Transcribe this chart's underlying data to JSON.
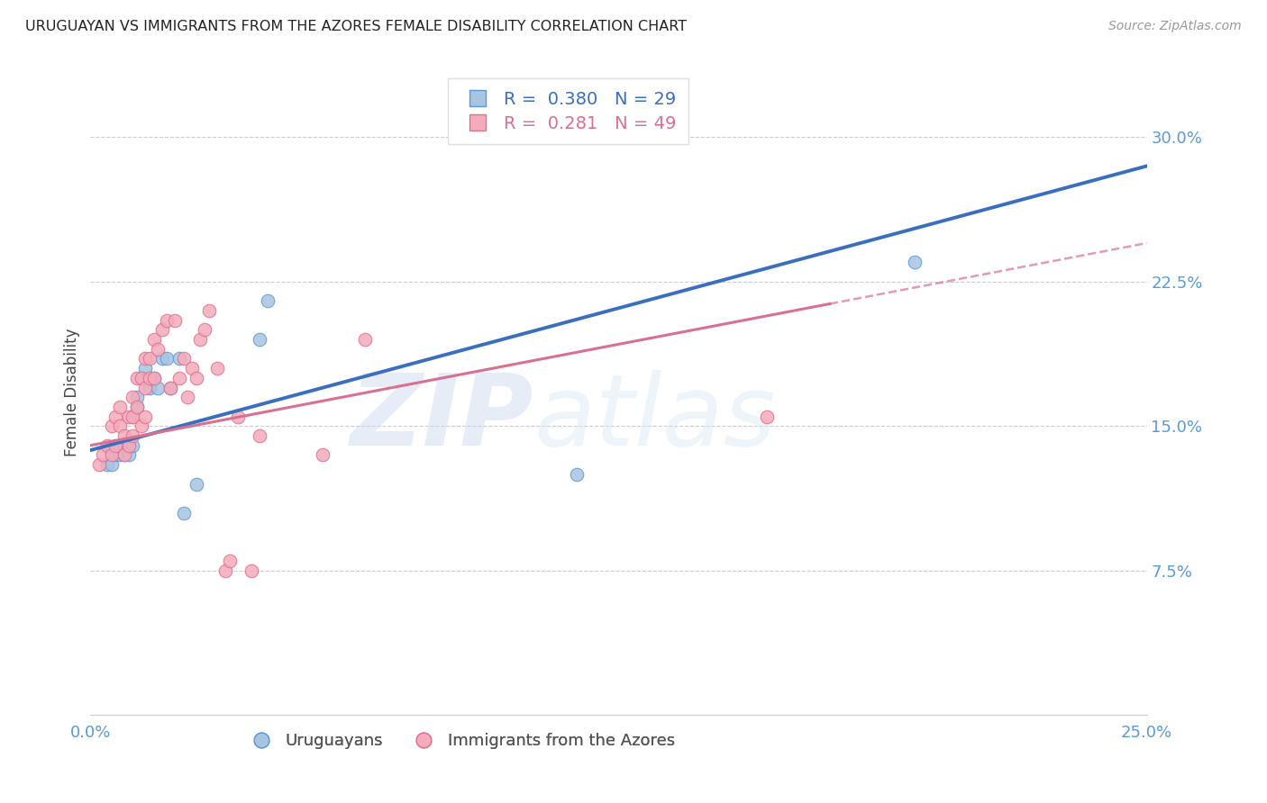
{
  "title": "URUGUAYAN VS IMMIGRANTS FROM THE AZORES FEMALE DISABILITY CORRELATION CHART",
  "source": "Source: ZipAtlas.com",
  "ylabel": "Female Disability",
  "xlim": [
    0.0,
    0.25
  ],
  "ylim": [
    0.0,
    0.335
  ],
  "yticks_right": [
    0.075,
    0.15,
    0.225,
    0.3
  ],
  "yticklabels_right": [
    "7.5%",
    "15.0%",
    "22.5%",
    "30.0%"
  ],
  "tick_color": "#5B9BD5",
  "blue_dot_color": "#A8C4E0",
  "blue_dot_edge": "#5B9BD5",
  "pink_dot_color": "#F4ABBA",
  "pink_dot_edge": "#E07090",
  "blue_line_color": "#3A6FBF",
  "pink_line_color": "#D97090",
  "legend_R_blue": "0.380",
  "legend_N_blue": "29",
  "legend_R_pink": "0.281",
  "legend_N_pink": "49",
  "legend_label_blue": "Uruguayans",
  "legend_label_pink": "Immigrants from the Azores",
  "watermark": "ZIPatlas",
  "blue_line_x0": 0.0,
  "blue_line_y0": 0.1375,
  "blue_line_x1": 0.25,
  "blue_line_y1": 0.285,
  "pink_line_x0": 0.0,
  "pink_line_y0": 0.14,
  "pink_line_x1": 0.25,
  "pink_line_y1": 0.245,
  "blue_scatter_x": [
    0.004,
    0.005,
    0.006,
    0.007,
    0.007,
    0.008,
    0.008,
    0.009,
    0.009,
    0.01,
    0.01,
    0.011,
    0.011,
    0.012,
    0.013,
    0.013,
    0.014,
    0.015,
    0.016,
    0.017,
    0.018,
    0.019,
    0.021,
    0.022,
    0.025,
    0.04,
    0.042,
    0.115,
    0.195
  ],
  "blue_scatter_y": [
    0.13,
    0.13,
    0.135,
    0.135,
    0.14,
    0.135,
    0.14,
    0.135,
    0.14,
    0.14,
    0.155,
    0.16,
    0.165,
    0.175,
    0.175,
    0.18,
    0.17,
    0.175,
    0.17,
    0.185,
    0.185,
    0.17,
    0.185,
    0.105,
    0.12,
    0.195,
    0.215,
    0.125,
    0.235
  ],
  "pink_scatter_x": [
    0.002,
    0.003,
    0.004,
    0.005,
    0.005,
    0.006,
    0.006,
    0.007,
    0.007,
    0.008,
    0.008,
    0.009,
    0.009,
    0.01,
    0.01,
    0.01,
    0.011,
    0.011,
    0.012,
    0.012,
    0.013,
    0.013,
    0.013,
    0.014,
    0.014,
    0.015,
    0.015,
    0.016,
    0.017,
    0.018,
    0.019,
    0.02,
    0.021,
    0.022,
    0.023,
    0.024,
    0.025,
    0.026,
    0.027,
    0.028,
    0.03,
    0.032,
    0.033,
    0.035,
    0.038,
    0.04,
    0.055,
    0.065,
    0.16
  ],
  "pink_scatter_y": [
    0.13,
    0.135,
    0.14,
    0.135,
    0.15,
    0.14,
    0.155,
    0.15,
    0.16,
    0.135,
    0.145,
    0.14,
    0.155,
    0.145,
    0.155,
    0.165,
    0.16,
    0.175,
    0.15,
    0.175,
    0.155,
    0.17,
    0.185,
    0.175,
    0.185,
    0.175,
    0.195,
    0.19,
    0.2,
    0.205,
    0.17,
    0.205,
    0.175,
    0.185,
    0.165,
    0.18,
    0.175,
    0.195,
    0.2,
    0.21,
    0.18,
    0.075,
    0.08,
    0.155,
    0.075,
    0.145,
    0.135,
    0.195,
    0.155
  ]
}
